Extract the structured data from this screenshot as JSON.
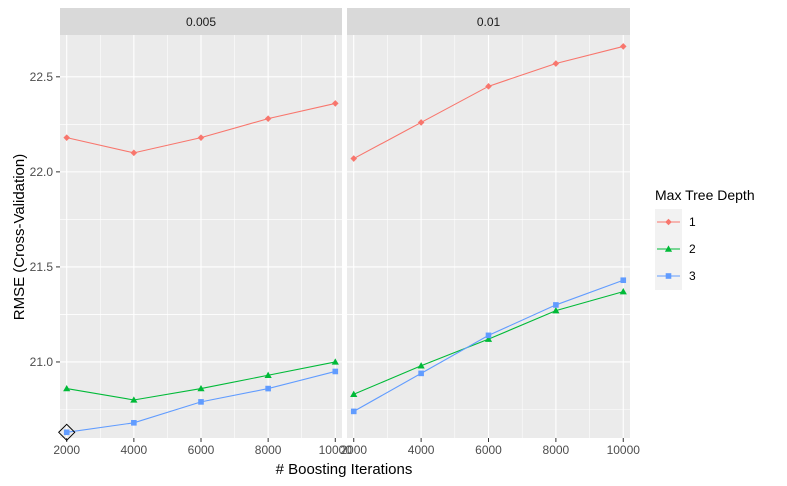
{
  "chart_data": {
    "type": "line",
    "xlabel": "# Boosting Iterations",
    "ylabel": "RMSE (Cross-Validation)",
    "ylim": [
      20.6,
      22.72
    ],
    "yticks": [
      21.0,
      21.5,
      22.0,
      22.5
    ],
    "ytick_labels": [
      "21.0",
      "21.5",
      "22.0",
      "22.5"
    ],
    "xlim": [
      1800,
      10200
    ],
    "xticks": [
      2000,
      4000,
      6000,
      8000,
      10000
    ],
    "xtick_labels": [
      "2000",
      "4000",
      "6000",
      "8000",
      "10000"
    ],
    "grid": true,
    "legend": {
      "title": "Max Tree Depth",
      "placement": "right",
      "entries": [
        "1",
        "2",
        "3"
      ]
    },
    "highlight": {
      "panel": "0.005",
      "series": "3",
      "x": 2000,
      "y": 20.63
    },
    "panels": [
      {
        "strip": "0.005",
        "x": [
          2000,
          4000,
          6000,
          8000,
          10000
        ],
        "series": [
          {
            "name": "1",
            "color": "#F8766D",
            "marker": "diamond",
            "values": [
              22.18,
              22.1,
              22.18,
              22.28,
              22.36
            ]
          },
          {
            "name": "2",
            "color": "#00BA38",
            "marker": "triangle",
            "values": [
              20.86,
              20.8,
              20.86,
              20.93,
              21.0
            ]
          },
          {
            "name": "3",
            "color": "#619CFF",
            "marker": "square",
            "values": [
              20.63,
              20.68,
              20.79,
              20.86,
              20.95
            ]
          }
        ]
      },
      {
        "strip": "0.01",
        "x": [
          2000,
          4000,
          6000,
          8000,
          10000
        ],
        "series": [
          {
            "name": "1",
            "color": "#F8766D",
            "marker": "diamond",
            "values": [
              22.07,
              22.26,
              22.45,
              22.57,
              22.66
            ]
          },
          {
            "name": "2",
            "color": "#00BA38",
            "marker": "triangle",
            "values": [
              20.83,
              20.98,
              21.12,
              21.27,
              21.37
            ]
          },
          {
            "name": "3",
            "color": "#619CFF",
            "marker": "square",
            "values": [
              20.74,
              20.94,
              21.14,
              21.3,
              21.43
            ]
          }
        ]
      }
    ]
  }
}
